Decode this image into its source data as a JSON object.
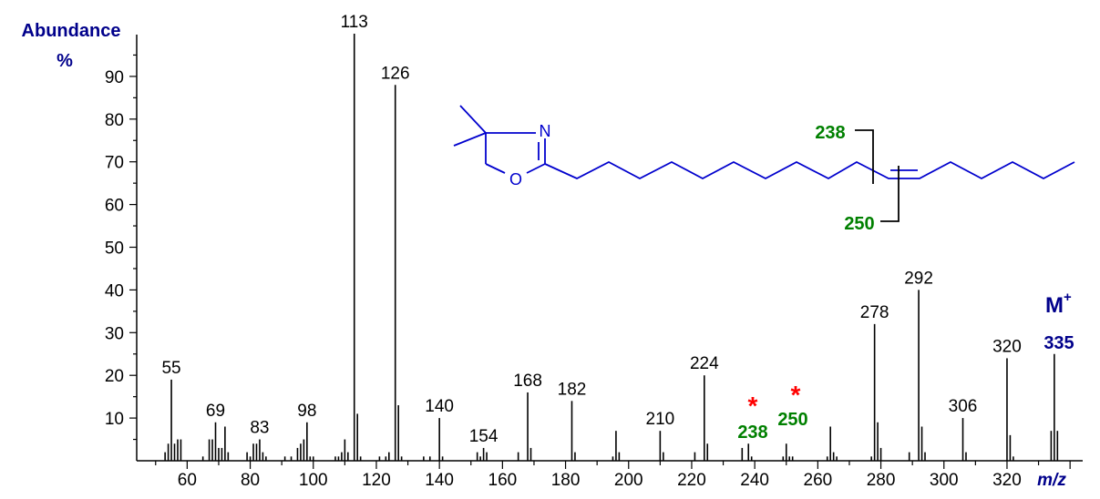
{
  "colors": {
    "axis": "#000000",
    "label_blue": "#00008b",
    "structure": "#0000cd",
    "fragment_green": "#008000",
    "marker_red": "#ff0000"
  },
  "chart_data": {
    "type": "bar",
    "title": "",
    "ylabel_line1": "Abundance",
    "ylabel_line2": "%",
    "xlabel": "m/z",
    "xlim": [
      44,
      344
    ],
    "ylim": [
      0,
      100
    ],
    "x_ticks": [
      "60",
      "80",
      "100",
      "120",
      "140",
      "160",
      "180",
      "200",
      "220",
      "240",
      "260",
      "280",
      "300",
      "320"
    ],
    "y_ticks": [
      "10",
      "20",
      "30",
      "40",
      "50",
      "60",
      "70",
      "80",
      "90"
    ],
    "peaks": [
      {
        "x": 53,
        "y": 2
      },
      {
        "x": 54,
        "y": 4
      },
      {
        "x": 55,
        "y": 19
      },
      {
        "x": 56,
        "y": 4
      },
      {
        "x": 57,
        "y": 5
      },
      {
        "x": 58,
        "y": 5
      },
      {
        "x": 65,
        "y": 1
      },
      {
        "x": 67,
        "y": 5
      },
      {
        "x": 68,
        "y": 5
      },
      {
        "x": 69,
        "y": 9
      },
      {
        "x": 70,
        "y": 3
      },
      {
        "x": 71,
        "y": 3
      },
      {
        "x": 72,
        "y": 8
      },
      {
        "x": 73,
        "y": 2
      },
      {
        "x": 79,
        "y": 2
      },
      {
        "x": 80,
        "y": 1
      },
      {
        "x": 81,
        "y": 4
      },
      {
        "x": 82,
        "y": 4
      },
      {
        "x": 83,
        "y": 5
      },
      {
        "x": 84,
        "y": 2
      },
      {
        "x": 85,
        "y": 1
      },
      {
        "x": 91,
        "y": 1
      },
      {
        "x": 93,
        "y": 1
      },
      {
        "x": 95,
        "y": 3
      },
      {
        "x": 96,
        "y": 4
      },
      {
        "x": 97,
        "y": 5
      },
      {
        "x": 98,
        "y": 9
      },
      {
        "x": 99,
        "y": 1
      },
      {
        "x": 100,
        "y": 1
      },
      {
        "x": 107,
        "y": 1
      },
      {
        "x": 108,
        "y": 1
      },
      {
        "x": 109,
        "y": 2
      },
      {
        "x": 110,
        "y": 5
      },
      {
        "x": 111,
        "y": 2
      },
      {
        "x": 113,
        "y": 100
      },
      {
        "x": 114,
        "y": 11
      },
      {
        "x": 115,
        "y": 1
      },
      {
        "x": 121,
        "y": 1
      },
      {
        "x": 123,
        "y": 1
      },
      {
        "x": 124,
        "y": 2
      },
      {
        "x": 126,
        "y": 88
      },
      {
        "x": 127,
        "y": 13
      },
      {
        "x": 128,
        "y": 1
      },
      {
        "x": 135,
        "y": 1
      },
      {
        "x": 137,
        "y": 1
      },
      {
        "x": 140,
        "y": 10
      },
      {
        "x": 141,
        "y": 1
      },
      {
        "x": 152,
        "y": 2
      },
      {
        "x": 153,
        "y": 1
      },
      {
        "x": 154,
        "y": 3
      },
      {
        "x": 155,
        "y": 2
      },
      {
        "x": 165,
        "y": 2
      },
      {
        "x": 168,
        "y": 16
      },
      {
        "x": 169,
        "y": 3
      },
      {
        "x": 182,
        "y": 14
      },
      {
        "x": 183,
        "y": 2
      },
      {
        "x": 195,
        "y": 1
      },
      {
        "x": 196,
        "y": 7
      },
      {
        "x": 197,
        "y": 2
      },
      {
        "x": 210,
        "y": 7
      },
      {
        "x": 211,
        "y": 2
      },
      {
        "x": 221,
        "y": 2
      },
      {
        "x": 224,
        "y": 20
      },
      {
        "x": 225,
        "y": 4
      },
      {
        "x": 236,
        "y": 3
      },
      {
        "x": 238,
        "y": 4
      },
      {
        "x": 239,
        "y": 1
      },
      {
        "x": 249,
        "y": 1
      },
      {
        "x": 250,
        "y": 4
      },
      {
        "x": 251,
        "y": 1
      },
      {
        "x": 252,
        "y": 1
      },
      {
        "x": 263,
        "y": 1
      },
      {
        "x": 264,
        "y": 8
      },
      {
        "x": 265,
        "y": 2
      },
      {
        "x": 266,
        "y": 1
      },
      {
        "x": 277,
        "y": 1
      },
      {
        "x": 278,
        "y": 32
      },
      {
        "x": 279,
        "y": 9
      },
      {
        "x": 280,
        "y": 3
      },
      {
        "x": 289,
        "y": 2
      },
      {
        "x": 292,
        "y": 40
      },
      {
        "x": 293,
        "y": 8
      },
      {
        "x": 294,
        "y": 2
      },
      {
        "x": 306,
        "y": 10
      },
      {
        "x": 307,
        "y": 2
      },
      {
        "x": 320,
        "y": 24
      },
      {
        "x": 321,
        "y": 6
      },
      {
        "x": 322,
        "y": 1
      },
      {
        "x": 334,
        "y": 7
      },
      {
        "x": 335,
        "y": 25
      },
      {
        "x": 336,
        "y": 7
      }
    ],
    "peak_labels": [
      {
        "text": "55",
        "x": 55,
        "y": 19
      },
      {
        "text": "69",
        "x": 69,
        "y": 9
      },
      {
        "text": "83",
        "x": 83,
        "y": 5
      },
      {
        "text": "98",
        "x": 98,
        "y": 9
      },
      {
        "text": "113",
        "x": 113,
        "y": 100
      },
      {
        "text": "126",
        "x": 126,
        "y": 88
      },
      {
        "text": "140",
        "x": 140,
        "y": 10
      },
      {
        "text": "154",
        "x": 154,
        "y": 3
      },
      {
        "text": "168",
        "x": 168,
        "y": 16
      },
      {
        "text": "182",
        "x": 182,
        "y": 14
      },
      {
        "text": "210",
        "x": 210,
        "y": 7
      },
      {
        "text": "224",
        "x": 224,
        "y": 20
      },
      {
        "text": "278",
        "x": 278,
        "y": 32
      },
      {
        "text": "292",
        "x": 292,
        "y": 40
      },
      {
        "text": "306",
        "x": 306,
        "y": 10
      },
      {
        "text": "320",
        "x": 320,
        "y": 24
      }
    ],
    "annotations": {
      "molecular_ion_label": "M",
      "molecular_ion_superscript": "+",
      "molecular_ion_mz": "335",
      "fragment_238": "238",
      "fragment_250": "250",
      "marker_star": "*"
    },
    "structure": {
      "atom_N": "N",
      "atom_O": "O",
      "fragment_238": "238",
      "fragment_250": "250"
    }
  }
}
